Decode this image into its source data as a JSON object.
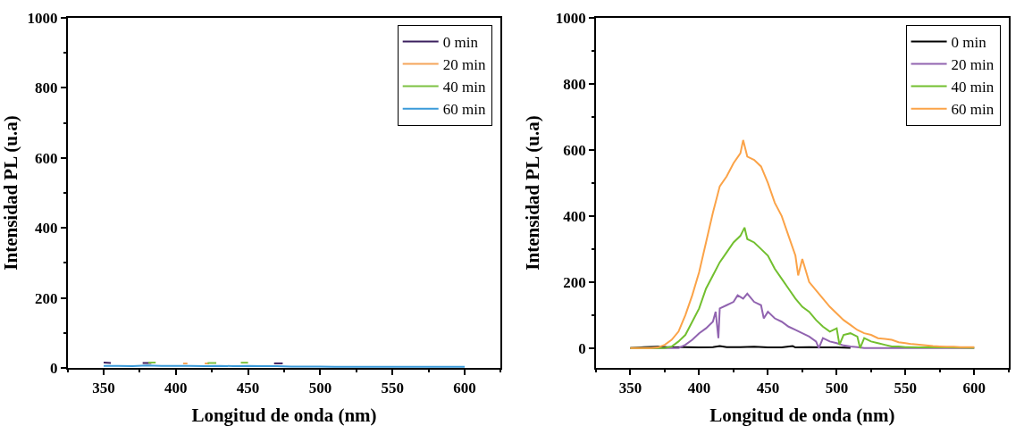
{
  "chart_data": [
    {
      "type": "line",
      "xlabel": "Longitud de onda (nm)",
      "ylabel": "Intensidad PL (u.a)",
      "xlim": [
        325,
        625
      ],
      "ylim": [
        0,
        1000
      ],
      "xticks": [
        350,
        400,
        450,
        500,
        550,
        600
      ],
      "yticks": [
        0,
        200,
        400,
        600,
        800,
        1000
      ],
      "legend": "top right",
      "line_style": "solid",
      "series": [
        {
          "name": "0 min",
          "color": "#3b1f5e",
          "x": [
            350,
            355,
            365,
            377,
            383,
            400,
            468,
            474
          ],
          "values": [
            15,
            14,
            null,
            14,
            14,
            null,
            13,
            13
          ]
        },
        {
          "name": "20 min",
          "color": "#f5a55b",
          "x": [
            405,
            408,
            415,
            420,
            423
          ],
          "values": [
            13,
            13,
            null,
            13,
            13
          ]
        },
        {
          "name": "40 min",
          "color": "#7dc242",
          "x": [
            381,
            386,
            400,
            422,
            428,
            440,
            445,
            450
          ],
          "values": [
            15,
            15,
            null,
            14,
            14,
            null,
            15,
            15
          ]
        },
        {
          "name": "60 min",
          "color": "#3a9ad9",
          "x": [
            350,
            360,
            370,
            380,
            390,
            400,
            410,
            420,
            430,
            440,
            450,
            460,
            470,
            480,
            490,
            500,
            510,
            520,
            530,
            540,
            550,
            560,
            570,
            580,
            590,
            600
          ],
          "values": [
            6,
            6,
            5,
            7,
            6,
            6,
            6,
            5,
            6,
            5,
            6,
            5,
            5,
            4,
            4,
            4,
            3,
            3,
            3,
            3,
            3,
            3,
            3,
            3,
            3,
            3
          ]
        }
      ]
    },
    {
      "type": "line",
      "xlabel": "Longitud de onda (nm)",
      "ylabel": "Intensidad PL (u.a)",
      "xlim": [
        325,
        625
      ],
      "ylim": [
        -60,
        1000
      ],
      "xticks": [
        350,
        400,
        450,
        500,
        550,
        600
      ],
      "yticks": [
        0,
        200,
        400,
        600,
        800,
        1000
      ],
      "legend": "top right",
      "line_style": "solid",
      "series": [
        {
          "name": "0 min",
          "color": "#000000",
          "x": [
            350,
            360,
            370,
            380,
            390,
            400,
            410,
            415,
            420,
            430,
            440,
            450,
            460,
            468,
            470,
            480,
            490,
            500,
            510
          ],
          "values": [
            0,
            3,
            4,
            2,
            3,
            2,
            3,
            6,
            3,
            3,
            4,
            2,
            2,
            6,
            2,
            3,
            2,
            2,
            1
          ]
        },
        {
          "name": "20 min",
          "color": "#9164b0",
          "x": [
            350,
            370,
            385,
            390,
            395,
            400,
            405,
            410,
            412,
            414,
            415,
            420,
            425,
            428,
            432,
            435,
            440,
            445,
            447,
            450,
            455,
            460,
            465,
            470,
            475,
            480,
            485,
            487,
            490,
            495,
            500,
            505,
            510,
            515,
            520,
            530,
            550,
            570,
            600
          ],
          "values": [
            0,
            0,
            0,
            10,
            25,
            45,
            60,
            80,
            110,
            30,
            120,
            130,
            140,
            160,
            150,
            165,
            140,
            130,
            90,
            110,
            90,
            80,
            65,
            55,
            45,
            35,
            20,
            0,
            30,
            20,
            15,
            8,
            5,
            3,
            0,
            0,
            0,
            0,
            0
          ]
        },
        {
          "name": "40 min",
          "color": "#72bf2f",
          "x": [
            350,
            370,
            375,
            380,
            385,
            390,
            395,
            400,
            405,
            410,
            415,
            420,
            425,
            430,
            433,
            435,
            440,
            445,
            450,
            455,
            460,
            465,
            470,
            475,
            480,
            485,
            490,
            495,
            500,
            502,
            505,
            510,
            515,
            517,
            520,
            525,
            530,
            535,
            540,
            545,
            550,
            560,
            580,
            600
          ],
          "values": [
            0,
            0,
            0,
            5,
            20,
            40,
            80,
            120,
            180,
            220,
            260,
            290,
            320,
            340,
            365,
            330,
            320,
            300,
            280,
            240,
            210,
            180,
            150,
            125,
            110,
            85,
            65,
            50,
            60,
            10,
            40,
            45,
            35,
            0,
            30,
            20,
            15,
            10,
            5,
            5,
            3,
            2,
            2,
            1
          ]
        },
        {
          "name": "60 min",
          "color": "#fba348",
          "x": [
            350,
            355,
            360,
            365,
            370,
            375,
            380,
            385,
            390,
            395,
            400,
            405,
            410,
            415,
            420,
            425,
            430,
            432,
            435,
            440,
            445,
            450,
            455,
            460,
            465,
            470,
            472,
            475,
            480,
            485,
            490,
            495,
            500,
            505,
            510,
            515,
            520,
            525,
            530,
            535,
            540,
            545,
            550,
            555,
            560,
            565,
            570,
            575,
            580,
            585,
            590,
            595,
            600
          ],
          "values": [
            0,
            0,
            0,
            0,
            2,
            10,
            25,
            50,
            100,
            160,
            230,
            320,
            410,
            490,
            520,
            560,
            590,
            630,
            580,
            570,
            550,
            500,
            440,
            400,
            340,
            280,
            220,
            270,
            200,
            175,
            150,
            125,
            105,
            85,
            70,
            55,
            45,
            40,
            30,
            28,
            25,
            18,
            15,
            12,
            10,
            8,
            6,
            5,
            4,
            4,
            3,
            3,
            3
          ]
        }
      ]
    }
  ]
}
